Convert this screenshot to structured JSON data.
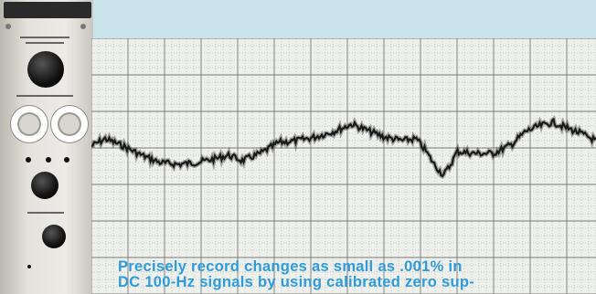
{
  "caption": {
    "line1": "Precisely record changes as small as .001% in",
    "line2": "DC 100-Hz signals by using calibrated zero sup-"
  },
  "colors": {
    "background": "#c9e3ea",
    "caption": "#2f9bd8",
    "grid": "#7a7a78",
    "trace": "#1a1a1a"
  }
}
